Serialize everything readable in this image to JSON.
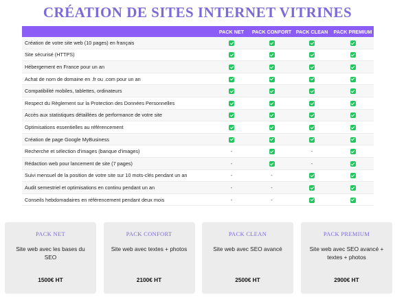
{
  "title": "CRÉATION DE SITES INTERNET VITRINES",
  "packs": [
    "PACK NET",
    "PACK CONFORT",
    "PACK CLEAN",
    "PACK PREMIUM"
  ],
  "rows": [
    {
      "label": "Création de votre site web (10 pages) en français",
      "values": [
        "check",
        "check",
        "check",
        "check"
      ]
    },
    {
      "label": "Site sécurisé (HTTPS)",
      "values": [
        "check",
        "check",
        "check",
        "check"
      ]
    },
    {
      "label": "Hébergement en France pour un an",
      "values": [
        "check",
        "check",
        "check",
        "check"
      ]
    },
    {
      "label": "Achat de nom de domaine en .fr ou .com pour un an",
      "values": [
        "check",
        "check",
        "check",
        "check"
      ]
    },
    {
      "label": "Compatibilité mobiles, tablettes, ordinateurs",
      "values": [
        "check",
        "check",
        "check",
        "check"
      ]
    },
    {
      "label": "Respect du Règlement sur la Protection des Données Personnelles",
      "values": [
        "check",
        "check",
        "check",
        "check"
      ]
    },
    {
      "label": "Accès aux statistiques détaillées de performance de votre site",
      "values": [
        "check",
        "check",
        "check",
        "check"
      ]
    },
    {
      "label": "Optimisations essentielles au référencement",
      "values": [
        "check",
        "check",
        "check",
        "check"
      ]
    },
    {
      "label": "Création de page Google MyBusiness",
      "values": [
        "check",
        "check",
        "check",
        "check"
      ]
    },
    {
      "label": "Recherche et sélection d'images (banque d'images)",
      "values": [
        "-",
        "check",
        "-",
        "check"
      ]
    },
    {
      "label": "Rédaction web pour lancement de site (7 pages)",
      "values": [
        "-",
        "check",
        "-",
        "check"
      ]
    },
    {
      "label": "Suivi mensuel de la position de votre site sur 10 mots-clés pendant un an",
      "values": [
        "-",
        "-",
        "check",
        "check"
      ]
    },
    {
      "label": "Audit semestriel et optimisations en continu pendant un an",
      "values": [
        "-",
        "-",
        "check",
        "check"
      ]
    },
    {
      "label": "Conseils hebdomadaires en référencement pendant deux mois",
      "values": [
        "-",
        "-",
        "check",
        "check"
      ]
    }
  ],
  "cards": [
    {
      "name": "PACK NET",
      "desc": "Site web avec les bases du SEO",
      "price": "1500€ HT"
    },
    {
      "name": "PACK CONFORT",
      "desc": "Site web avec textes + photos",
      "price": "2100€ HT"
    },
    {
      "name": "PACK CLEAN",
      "desc": "Site web avec SEO avancé",
      "price": "2500€ HT"
    },
    {
      "name": "PACK PREMIUM",
      "desc": "Site web avec SEO avancé + textes + photos",
      "price": "2900€ HT"
    }
  ],
  "colors": {
    "accent": "#8b5cf6",
    "title": "#7b6ad8",
    "check": "#22c55e",
    "card_bg": "#ececec"
  },
  "icons": {
    "included": "check-icon",
    "not_included": "dash"
  }
}
